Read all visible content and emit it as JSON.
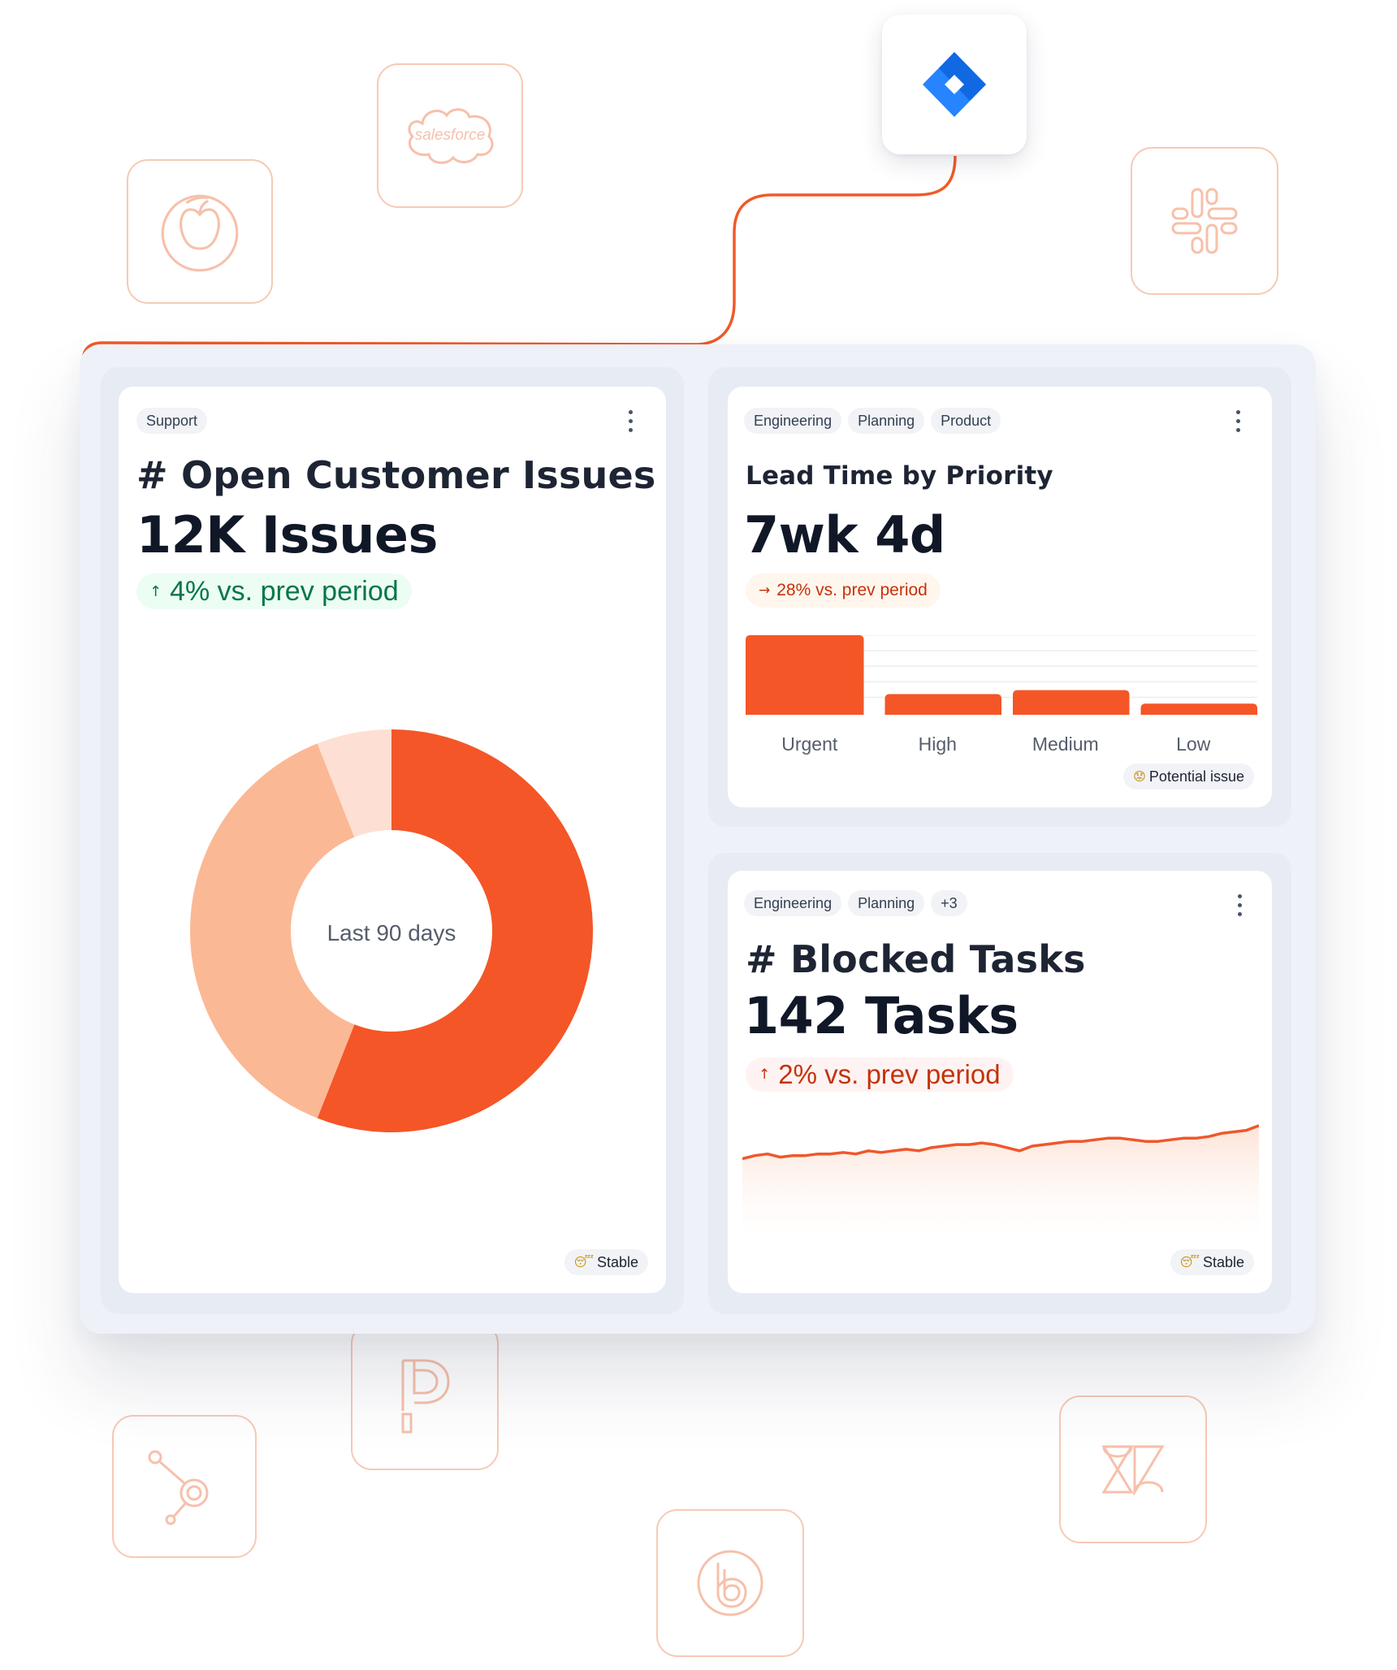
{
  "integrations": {
    "jira": "jira-icon",
    "salesforce": "salesforce",
    "icons": [
      "apple-icon",
      "salesforce-icon",
      "slack-icon",
      "pipedrive-icon",
      "hubspot-icon",
      "bigtime-icon",
      "zendesk-icon"
    ]
  },
  "colors": {
    "accent": "#f45627",
    "accent_light": "#fbb895",
    "accent_pale": "#fde0d3",
    "positive": "#067647",
    "positive_bg": "#ecfdf3",
    "negative": "#c4320a",
    "negative_bg": "#fef3f2",
    "warning_bg": "#fff6ed"
  },
  "open_issues": {
    "tags": [
      "Support"
    ],
    "title": "# Open Customer Issues",
    "value": "12K Issues",
    "delta_arrow": "↑",
    "delta_text": "4% vs. prev period",
    "chart_center_label": "Last 90 days",
    "status": "Stable",
    "status_emoji": "😴"
  },
  "lead_time": {
    "tags": [
      "Engineering",
      "Planning",
      "Product"
    ],
    "title": "Lead Time by Priority",
    "value": "7wk 4d",
    "delta_arrow": "→",
    "delta_text": "28% vs. prev period",
    "status": "Potential issue",
    "status_emoji": "😟"
  },
  "blocked_tasks": {
    "tags": [
      "Engineering",
      "Planning",
      "+3"
    ],
    "title": "# Blocked Tasks",
    "value": "142 Tasks",
    "delta_arrow": "↑",
    "delta_text": "2% vs. prev period",
    "status": "Stable",
    "status_emoji": "😴"
  },
  "chart_data": [
    {
      "type": "pie",
      "subtype": "donut",
      "title": "",
      "center_label": "Last 90 days",
      "values": [
        56,
        38,
        6
      ],
      "colors": [
        "#f45627",
        "#fbb895",
        "#fde0d3"
      ]
    },
    {
      "type": "bar",
      "title": "",
      "categories": [
        "Urgent",
        "High",
        "Medium",
        "Low"
      ],
      "values": [
        100,
        26,
        31,
        14
      ],
      "ylim": [
        0,
        100
      ],
      "grid": true,
      "color": "#f45627"
    },
    {
      "type": "area",
      "title": "",
      "x": [
        1,
        2,
        3,
        4,
        5,
        6,
        7,
        8,
        9,
        10,
        11,
        12,
        13,
        14,
        15,
        16,
        17,
        18,
        19,
        20,
        21,
        22,
        23,
        24,
        25,
        26,
        27,
        28,
        29,
        30,
        31,
        32,
        33,
        34,
        35,
        36,
        37,
        38,
        39,
        40,
        41,
        42
      ],
      "values": [
        40,
        42,
        43,
        41,
        42,
        42,
        43,
        43,
        44,
        43,
        45,
        44,
        45,
        46,
        45,
        47,
        48,
        49,
        49,
        50,
        49,
        47,
        45,
        48,
        49,
        50,
        51,
        51,
        52,
        53,
        53,
        52,
        51,
        51,
        52,
        53,
        53,
        54,
        56,
        57,
        58,
        61
      ],
      "ylim": [
        0,
        100
      ],
      "color": "#f45627"
    }
  ]
}
